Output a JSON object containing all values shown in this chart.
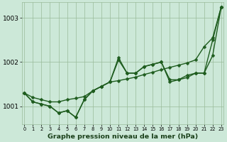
{
  "xlabel": "Graphe pression niveau de la mer (hPa)",
  "hours": [
    0,
    1,
    2,
    3,
    4,
    5,
    6,
    7,
    8,
    9,
    10,
    11,
    12,
    13,
    14,
    15,
    16,
    17,
    18,
    19,
    20,
    21,
    22,
    23
  ],
  "line_zigzag": [
    1001.3,
    1001.1,
    1001.05,
    1001.0,
    1000.85,
    1000.9,
    1000.75,
    1001.15,
    1001.35,
    1001.45,
    1001.55,
    1002.1,
    1001.75,
    1001.75,
    1001.9,
    1001.95,
    1002.0,
    1001.55,
    1001.6,
    1001.65,
    1001.75,
    1001.75,
    1002.15,
    1003.25
  ],
  "line_smooth": [
    1001.3,
    1001.1,
    1001.05,
    1001.0,
    1000.85,
    1000.9,
    1000.75,
    1001.15,
    1001.35,
    1001.45,
    1001.55,
    1002.05,
    1001.75,
    1001.75,
    1001.9,
    1001.95,
    1002.0,
    1001.6,
    1001.6,
    1001.7,
    1001.75,
    1001.75,
    1002.5,
    1003.25
  ],
  "line_trend": [
    1001.3,
    1001.2,
    1001.15,
    1001.1,
    1001.1,
    1001.15,
    1001.18,
    1001.22,
    1001.35,
    1001.45,
    1001.55,
    1001.58,
    1001.62,
    1001.66,
    1001.72,
    1001.77,
    1001.83,
    1001.88,
    1001.93,
    1001.98,
    1002.05,
    1002.35,
    1002.55,
    1003.25
  ],
  "ylim": [
    1000.6,
    1003.35
  ],
  "yticks": [
    1001,
    1002,
    1003
  ],
  "bg_color": "#cce8d8",
  "grid_color": "#99bb99",
  "line_color": "#1e5c1e",
  "marker_size": 2.5,
  "line_width": 1.0
}
